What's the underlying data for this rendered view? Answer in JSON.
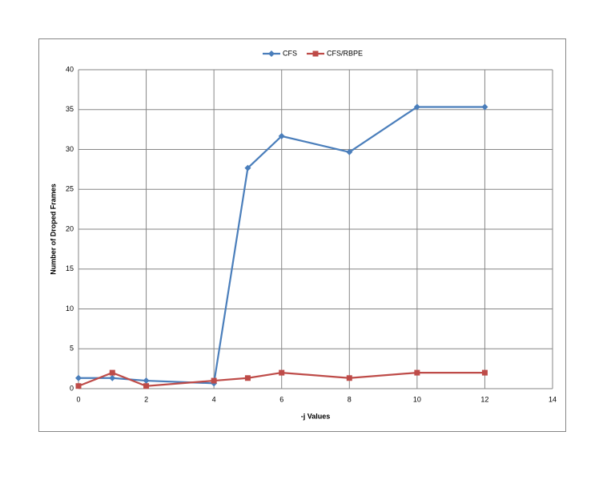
{
  "chart_data": {
    "type": "line",
    "x_label": "-j Values",
    "y_label": "Number of Droped Frames",
    "x": [
      0,
      1,
      2,
      4,
      5,
      6,
      8,
      10,
      12
    ],
    "series": [
      {
        "name": "CFS",
        "color": "#4a7ebb",
        "marker": "diamond",
        "values": [
          1.33,
          1.33,
          1.0,
          0.67,
          27.67,
          31.67,
          29.67,
          35.33,
          35.33
        ]
      },
      {
        "name": "CFS/RBPE",
        "color": "#be4b48",
        "marker": "square",
        "values": [
          0.33,
          2,
          0.33,
          1,
          1.33,
          2,
          1.33,
          2,
          2
        ]
      }
    ],
    "xlim": [
      0,
      14
    ],
    "xticks": [
      0,
      2,
      4,
      6,
      8,
      10,
      12,
      14
    ],
    "ylim": [
      0,
      40
    ],
    "yticks": [
      0,
      5,
      10,
      15,
      20,
      25,
      30,
      35,
      40
    ],
    "grid": true,
    "legend": "top"
  }
}
